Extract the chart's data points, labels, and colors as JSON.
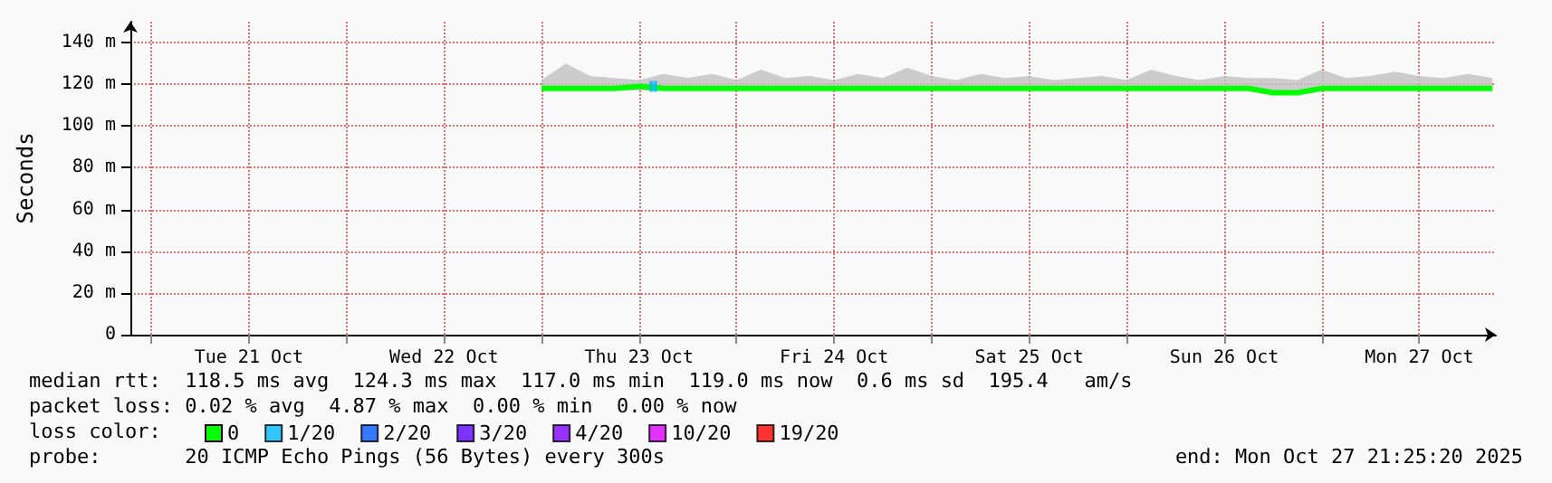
{
  "chart_data": {
    "type": "line",
    "ylabel": "Seconds",
    "legend_title": "loss color:",
    "legend": "bottom left",
    "grid": true,
    "xlim": [
      "2025-10-20T21:25",
      "2025-10-27T21:25"
    ],
    "xticks": [
      {
        "value": "2025-10-21T00:00",
        "label": null
      },
      {
        "value": "2025-10-21T12:00",
        "label": "Tue 21 Oct"
      },
      {
        "value": "2025-10-22T00:00",
        "label": null
      },
      {
        "value": "2025-10-22T12:00",
        "label": "Wed 22 Oct"
      },
      {
        "value": "2025-10-23T00:00",
        "label": null
      },
      {
        "value": "2025-10-23T12:00",
        "label": "Thu 23 Oct"
      },
      {
        "value": "2025-10-24T00:00",
        "label": null
      },
      {
        "value": "2025-10-24T12:00",
        "label": "Fri 24 Oct"
      },
      {
        "value": "2025-10-25T00:00",
        "label": null
      },
      {
        "value": "2025-10-25T12:00",
        "label": "Sat 25 Oct"
      },
      {
        "value": "2025-10-26T00:00",
        "label": null
      },
      {
        "value": "2025-10-26T12:00",
        "label": "Sun 26 Oct"
      },
      {
        "value": "2025-10-27T00:00",
        "label": null
      },
      {
        "value": "2025-10-27T12:00",
        "label": "Mon 27 Oct"
      }
    ],
    "ylim": [
      0,
      150
    ],
    "yticks": [
      0,
      {
        "value": 20,
        "label": "20 m"
      },
      {
        "value": 40,
        "label": "40 m"
      },
      {
        "value": 60,
        "label": "60 m"
      },
      {
        "value": 80,
        "label": "80 m"
      },
      {
        "value": 100,
        "label": "100 m"
      },
      {
        "value": 120,
        "label": "120 m"
      },
      {
        "value": 140,
        "label": "140 m"
      }
    ],
    "series": [
      {
        "name": "0",
        "color": "#00ff00",
        "marker": "none",
        "x": [
          "2025-10-23T00:00",
          "2025-10-23T03:00",
          "2025-10-23T06:00",
          "2025-10-23T09:00",
          "2025-10-23T12:00",
          "2025-10-23T15:00",
          "2025-10-23T18:00",
          "2025-10-23T21:00",
          "2025-10-24T00:00",
          "2025-10-24T03:00",
          "2025-10-24T06:00",
          "2025-10-24T09:00",
          "2025-10-24T12:00",
          "2025-10-24T15:00",
          "2025-10-24T18:00",
          "2025-10-24T21:00",
          "2025-10-25T00:00",
          "2025-10-25T03:00",
          "2025-10-25T06:00",
          "2025-10-25T09:00",
          "2025-10-25T12:00",
          "2025-10-25T15:00",
          "2025-10-25T18:00",
          "2025-10-25T21:00",
          "2025-10-26T00:00",
          "2025-10-26T03:00",
          "2025-10-26T06:00",
          "2025-10-26T09:00",
          "2025-10-26T12:00",
          "2025-10-26T15:00",
          "2025-10-26T18:00",
          "2025-10-26T21:00",
          "2025-10-27T00:00",
          "2025-10-27T03:00",
          "2025-10-27T06:00",
          "2025-10-27T09:00",
          "2025-10-27T12:00",
          "2025-10-27T15:00",
          "2025-10-27T18:00",
          "2025-10-27T21:00"
        ],
        "values": [
          118,
          118,
          118,
          118,
          119,
          118,
          118,
          118,
          118,
          118,
          118,
          118,
          118,
          118,
          118,
          118,
          118,
          118,
          118,
          118,
          118,
          118,
          118,
          118,
          118,
          118,
          118,
          118,
          118,
          118,
          116,
          116,
          118,
          118,
          118,
          118,
          118,
          118,
          118,
          118
        ],
        "lower": [
          117,
          117,
          117,
          117,
          117,
          117,
          117,
          117,
          117,
          117,
          117,
          117,
          117,
          117,
          117,
          117,
          117,
          117,
          117,
          117,
          117,
          117,
          117,
          117,
          117,
          117,
          117,
          117,
          117,
          117,
          115,
          115,
          117,
          117,
          117,
          117,
          117,
          117,
          117,
          117
        ],
        "upper": [
          122,
          130,
          124,
          123,
          122,
          125,
          123,
          125,
          122,
          127,
          123,
          124,
          122,
          125,
          123,
          128,
          124,
          122,
          125,
          123,
          124,
          122,
          123,
          124,
          122,
          127,
          124,
          122,
          124,
          123,
          123,
          122,
          127,
          123,
          124,
          126,
          124,
          123,
          125,
          123
        ]
      },
      {
        "name": "1/20",
        "color": "#00b8ff",
        "type": "scatter",
        "marker": "square",
        "x": [
          "2025-10-23T13:30",
          "2025-10-23T14:00"
        ],
        "values": [
          119,
          119
        ]
      },
      {
        "name": "2/20",
        "color": "#0059ff",
        "type": "scatter"
      },
      {
        "name": "3/20",
        "color": "#5e00ff",
        "type": "scatter"
      },
      {
        "name": "4/20",
        "color": "#7e00ff",
        "type": "scatter"
      },
      {
        "name": "10/20",
        "color": "#dd00ff",
        "type": "scatter"
      },
      {
        "name": "19/20",
        "color": "#ff0000",
        "type": "scatter"
      }
    ],
    "annotations": [
      "median rtt:  118.5 ms avg  124.3 ms max  117.0 ms min  119.0 ms now  0.6 ms sd  195.4   am/s",
      "packet loss: 0.02 % avg  4.87 % max  0.00 % min  0.00 % now",
      "probe:       20 ICMP Echo Pings (56 Bytes) every 300s",
      "end: Mon Oct 27 21:25:20 2025"
    ]
  }
}
